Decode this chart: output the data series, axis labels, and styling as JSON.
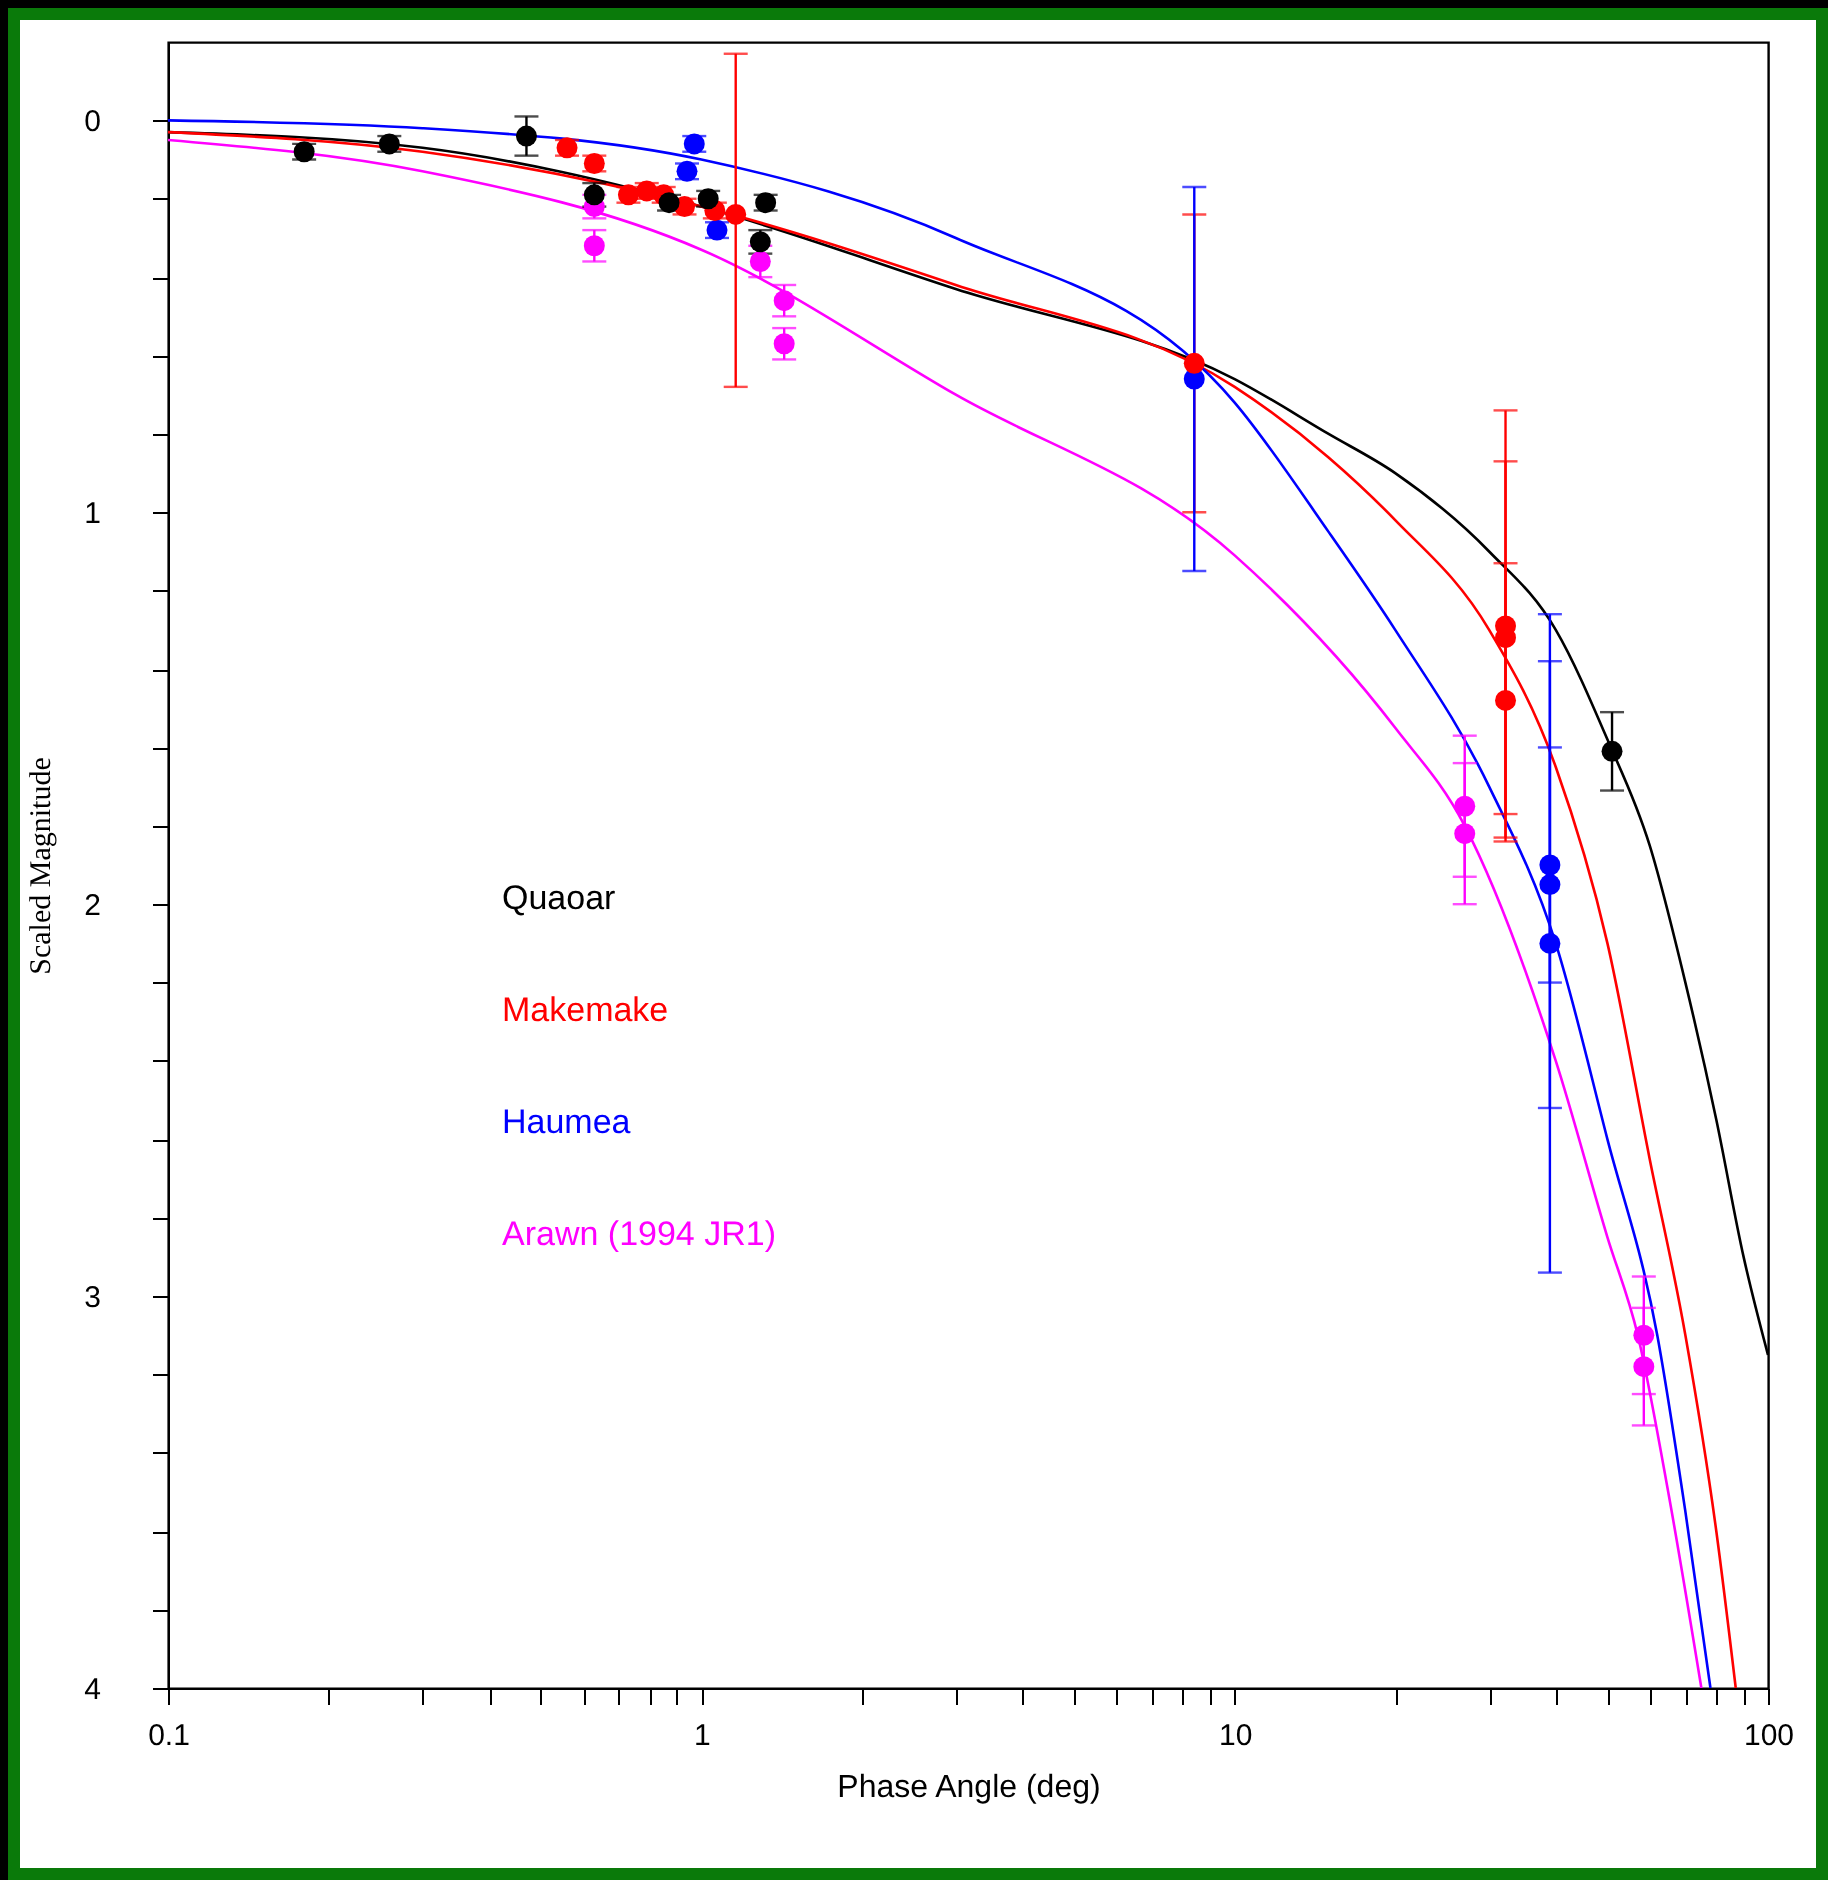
{
  "chart_data": {
    "type": "scatter",
    "xlabel": "Phase Angle (deg)",
    "ylabel": "Scaled Magnitude",
    "log": "x",
    "xlim": [
      0.1,
      100
    ],
    "ylim": [
      4,
      -0.2
    ],
    "xticks": [
      0.1,
      {
        "value": 0.2,
        "label": null
      },
      {
        "value": 0.3,
        "label": null
      },
      {
        "value": 0.4,
        "label": null
      },
      {
        "value": 0.5,
        "label": null
      },
      {
        "value": 0.6,
        "label": null
      },
      {
        "value": 0.7,
        "label": null
      },
      {
        "value": 0.8,
        "label": null
      },
      {
        "value": 0.9,
        "label": null
      },
      1,
      {
        "value": 2,
        "label": null
      },
      {
        "value": 3,
        "label": null
      },
      {
        "value": 4,
        "label": null
      },
      {
        "value": 5,
        "label": null
      },
      {
        "value": 6,
        "label": null
      },
      {
        "value": 7,
        "label": null
      },
      {
        "value": 8,
        "label": null
      },
      {
        "value": 9,
        "label": null
      },
      10,
      {
        "value": 20,
        "label": null
      },
      {
        "value": 30,
        "label": null
      },
      {
        "value": 40,
        "label": null
      },
      {
        "value": 50,
        "label": null
      },
      {
        "value": 60,
        "label": null
      },
      {
        "value": 70,
        "label": null
      },
      {
        "value": 80,
        "label": null
      },
      {
        "value": 90,
        "label": null
      },
      100
    ],
    "yticks": [
      0,
      {
        "value": 0.2,
        "label": null
      },
      {
        "value": 0.4,
        "label": null
      },
      {
        "value": 0.6,
        "label": null
      },
      {
        "value": 0.8,
        "label": null
      },
      1,
      {
        "value": 1.2,
        "label": null
      },
      {
        "value": 1.4,
        "label": null
      },
      {
        "value": 1.6,
        "label": null
      },
      {
        "value": 1.8,
        "label": null
      },
      2,
      {
        "value": 2.2,
        "label": null
      },
      {
        "value": 2.4,
        "label": null
      },
      {
        "value": 2.6,
        "label": null
      },
      {
        "value": 2.8,
        "label": null
      },
      3,
      {
        "value": 3.2,
        "label": null
      },
      {
        "value": 3.4,
        "label": null
      },
      {
        "value": 3.6,
        "label": null
      },
      {
        "value": 3.8,
        "label": null
      },
      4
    ],
    "grid": false,
    "legend": "left",
    "marker": "circle",
    "series": [
      {
        "name": "Quaoar",
        "color": "#000000",
        "x": [
          0.18,
          0.26,
          0.47,
          0.63,
          0.87,
          1.03,
          1.32,
          1.29,
          51
        ],
        "values": [
          0.08,
          0.06,
          0.04,
          0.19,
          0.21,
          0.2,
          0.21,
          0.31,
          1.61
        ],
        "errors": [
          0.02,
          0.02,
          0.05,
          0.03,
          0.02,
          0.02,
          0.02,
          0.03,
          0.1
        ]
      },
      {
        "name": "Makemake",
        "color": "#ff0000",
        "x": [
          0.56,
          0.63,
          0.73,
          0.79,
          0.85,
          0.93,
          1.06,
          1.16,
          8.4,
          32.2,
          32.2,
          32.2
        ],
        "values": [
          0.07,
          0.11,
          0.19,
          0.18,
          0.19,
          0.22,
          0.23,
          0.24,
          0.62,
          1.29,
          1.32,
          1.48
        ],
        "errors": [
          0.02,
          0.02,
          0.02,
          0.02,
          0.02,
          0.02,
          0.02,
          [
            -0.17,
            0.68
          ],
          0.38,
          0.55,
          0.45,
          0.35
        ]
      },
      {
        "name": "Haumea",
        "color": "#0000ff",
        "x": [
          0.97,
          0.94,
          1.07,
          8.4,
          39,
          39,
          39
        ],
        "values": [
          0.06,
          0.13,
          0.28,
          0.66,
          1.9,
          1.95,
          2.1
        ],
        "errors": [
          0.02,
          0.02,
          0.02,
          0.49,
          0.3,
          0.57,
          0.84
        ]
      },
      {
        "name": "Arawn (1994 JR1)",
        "color": "#ff00ff",
        "x": [
          0.63,
          0.63,
          1.29,
          1.43,
          1.43,
          27,
          27,
          58.5,
          58.5
        ],
        "values": [
          0.22,
          0.32,
          0.36,
          0.46,
          0.57,
          1.75,
          1.82,
          3.1,
          3.18
        ],
        "errors": [
          0.03,
          0.04,
          0.04,
          0.04,
          0.04,
          0.18,
          0.18,
          0.15,
          0.15
        ]
      },
      {
        "type": "line",
        "marker": "none",
        "color": "#000000",
        "x": [
          0.1,
          0.3,
          1,
          3,
          10,
          15,
          20,
          30,
          40,
          50,
          60,
          70,
          80,
          90,
          100
        ],
        "values": [
          0.03,
          0.07,
          0.22,
          0.43,
          0.66,
          0.8,
          0.9,
          1.1,
          1.3,
          1.58,
          1.85,
          2.2,
          2.55,
          2.9,
          3.15
        ]
      },
      {
        "type": "line",
        "marker": "none",
        "color": "#ff0000",
        "x": [
          0.1,
          0.3,
          1,
          3,
          10,
          15,
          20,
          30,
          40,
          50,
          60,
          70,
          80,
          87
        ],
        "values": [
          0.03,
          0.08,
          0.22,
          0.42,
          0.68,
          0.86,
          1.02,
          1.3,
          1.65,
          2.1,
          2.65,
          3.1,
          3.6,
          4.0
        ]
      },
      {
        "type": "line",
        "marker": "none",
        "color": "#0000ff",
        "x": [
          0.1,
          0.3,
          1,
          3,
          10,
          15,
          20,
          30,
          40,
          50,
          62,
          70,
          78
        ],
        "values": [
          0.0,
          0.02,
          0.1,
          0.3,
          0.72,
          1.05,
          1.3,
          1.7,
          2.1,
          2.6,
          3.1,
          3.55,
          4.0
        ]
      },
      {
        "type": "line",
        "marker": "none",
        "color": "#ff00ff",
        "x": [
          0.1,
          0.3,
          1,
          3,
          10,
          20,
          27,
          40,
          50,
          57,
          65,
          75
        ],
        "values": [
          0.05,
          0.13,
          0.33,
          0.7,
          1.11,
          1.55,
          1.8,
          2.4,
          2.85,
          3.1,
          3.5,
          4.0
        ]
      }
    ]
  }
}
